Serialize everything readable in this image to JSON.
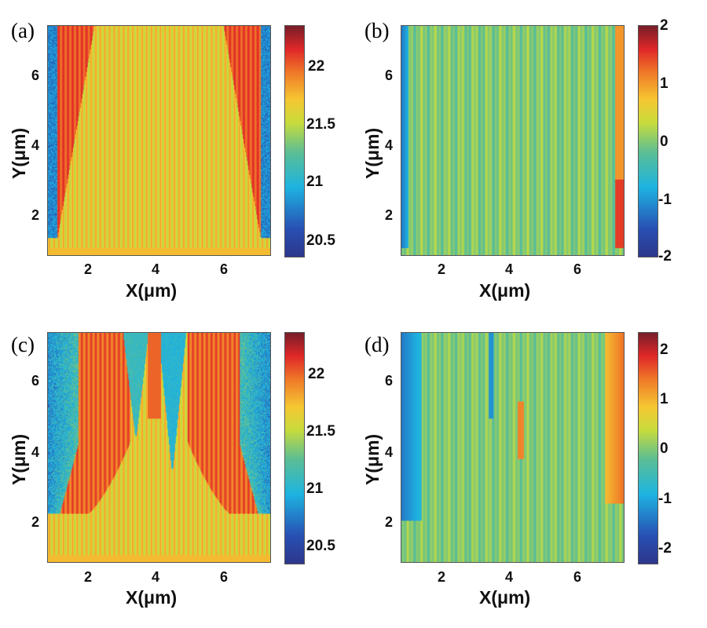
{
  "chart_data": [
    {
      "type": "heatmap",
      "panel_label": "(a)",
      "xlabel": "X(μm)",
      "ylabel": "Y(μm)",
      "xlim": [
        0.7,
        7.4
      ],
      "ylim": [
        0.8,
        7.5
      ],
      "xticks": [
        "2",
        "4",
        "6"
      ],
      "yticks": [
        "2",
        "4",
        "6"
      ],
      "colorbar": {
        "range": [
          20.35,
          22.35
        ],
        "ticks": [
          "20.5",
          "21",
          "21.5",
          "22"
        ]
      },
      "pattern": "vertical stripes ~21.7 with red wedges widening from bottom edges (Y~1.5) toward top near X~1.5 and X~6.5; blue edges at X<1 and X>7"
    },
    {
      "type": "heatmap",
      "panel_label": "(b)",
      "xlabel": "X(μm)",
      "ylabel": "Y(μm)",
      "xlim": [
        0.7,
        7.4
      ],
      "ylim": [
        0.8,
        7.5
      ],
      "xticks": [
        "2",
        "4",
        "6"
      ],
      "yticks": [
        "2",
        "4",
        "6"
      ],
      "colorbar": {
        "range": [
          -2,
          2
        ],
        "ticks": [
          "2",
          "1",
          "0",
          "-1",
          "-2"
        ]
      },
      "pattern": "near-zero vertical stripes; negative band at left edge, positive band at right edge"
    },
    {
      "type": "heatmap",
      "panel_label": "(c)",
      "xlabel": "X(μm)",
      "ylabel": "Y(μm)",
      "xlim": [
        0.7,
        7.4
      ],
      "ylim": [
        0.8,
        7.5
      ],
      "xticks": [
        "2",
        "4",
        "6"
      ],
      "yticks": [
        "2",
        "4",
        "6"
      ],
      "colorbar": {
        "range": [
          20.35,
          22.35
        ],
        "ticks": [
          "20.5",
          "21",
          "21.5",
          "22"
        ]
      },
      "pattern": "red curved beams rising from Y~2 at edges; blue regions near edges and central blue filaments near X~3.3 and X~4.4"
    },
    {
      "type": "heatmap",
      "panel_label": "(d)",
      "xlabel": "X(μm)",
      "ylabel": "Y(μm)",
      "xlim": [
        0.7,
        7.4
      ],
      "ylim": [
        0.8,
        7.5
      ],
      "xticks": [
        "2",
        "4",
        "6"
      ],
      "yticks": [
        "2",
        "4",
        "6"
      ],
      "colorbar": {
        "range": [
          -2.3,
          2.3
        ],
        "ticks": [
          "2",
          "1",
          "0",
          "-1",
          "-2"
        ]
      },
      "pattern": "near-zero stripes; blue band at left edge, red/orange band at right edge, localized +/- features near X~3.4 and X~4.3"
    }
  ]
}
